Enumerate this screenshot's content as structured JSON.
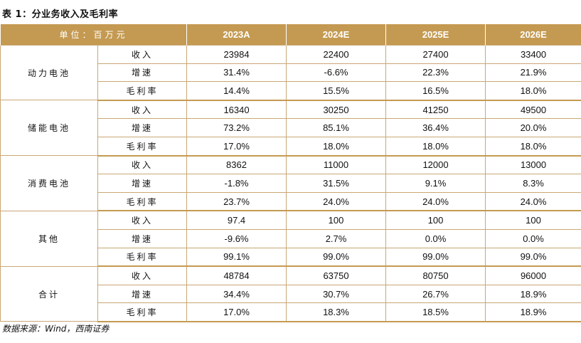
{
  "title": "表 1：分业务收入及毛利率",
  "header": {
    "unit": "单位：百万元",
    "years": [
      "2023A",
      "2024E",
      "2025E",
      "2026E"
    ]
  },
  "groups": [
    {
      "name": "动力电池",
      "rows": [
        {
          "metric": "收入",
          "values": [
            "23984",
            "22400",
            "27400",
            "33400"
          ]
        },
        {
          "metric": "增速",
          "values": [
            "31.4%",
            "-6.6%",
            "22.3%",
            "21.9%"
          ]
        },
        {
          "metric": "毛利率",
          "values": [
            "14.4%",
            "15.5%",
            "16.5%",
            "18.0%"
          ]
        }
      ]
    },
    {
      "name": "储能电池",
      "rows": [
        {
          "metric": "收入",
          "values": [
            "16340",
            "30250",
            "41250",
            "49500"
          ]
        },
        {
          "metric": "增速",
          "values": [
            "73.2%",
            "85.1%",
            "36.4%",
            "20.0%"
          ]
        },
        {
          "metric": "毛利率",
          "values": [
            "17.0%",
            "18.0%",
            "18.0%",
            "18.0%"
          ]
        }
      ]
    },
    {
      "name": "消费电池",
      "rows": [
        {
          "metric": "收入",
          "values": [
            "8362",
            "11000",
            "12000",
            "13000"
          ]
        },
        {
          "metric": "增速",
          "values": [
            "-1.8%",
            "31.5%",
            "9.1%",
            "8.3%"
          ]
        },
        {
          "metric": "毛利率",
          "values": [
            "23.7%",
            "24.0%",
            "24.0%",
            "24.0%"
          ]
        }
      ]
    },
    {
      "name": "其他",
      "rows": [
        {
          "metric": "收入",
          "values": [
            "97.4",
            "100",
            "100",
            "100"
          ]
        },
        {
          "metric": "增速",
          "values": [
            "-9.6%",
            "2.7%",
            "0.0%",
            "0.0%"
          ]
        },
        {
          "metric": "毛利率",
          "values": [
            "99.1%",
            "99.0%",
            "99.0%",
            "99.0%"
          ]
        }
      ]
    },
    {
      "name": "合计",
      "rows": [
        {
          "metric": "收入",
          "values": [
            "48784",
            "63750",
            "80750",
            "96000"
          ]
        },
        {
          "metric": "增速",
          "values": [
            "34.4%",
            "30.7%",
            "26.7%",
            "18.9%"
          ]
        },
        {
          "metric": "毛利率",
          "values": [
            "17.0%",
            "18.3%",
            "18.5%",
            "18.9%"
          ]
        }
      ]
    }
  ],
  "source": "数据来源：Wind，西南证券",
  "colors": {
    "header_bg": "#c49a52",
    "rule": "#c9a774"
  }
}
